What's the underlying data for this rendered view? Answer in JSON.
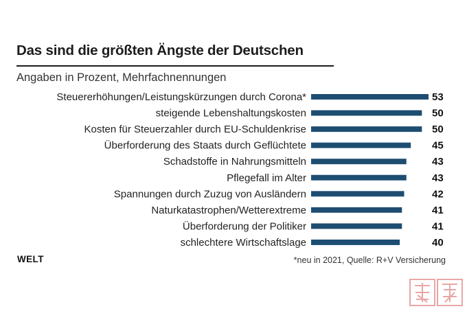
{
  "header": {
    "title": "Das sind die größten Ängste der Deutschen",
    "subtitle": "Angaben in Prozent, Mehrfachnennungen"
  },
  "footer": {
    "brand": "WELT",
    "source": "*neu in 2021, Quelle: R+V Versicherung"
  },
  "colors": {
    "bar": "#1e4d72",
    "text": "#1c1c1c",
    "watermark": "#e8a6a6"
  },
  "chart_data": {
    "type": "bar",
    "orientation": "horizontal",
    "title": "Das sind die größten Ängste der Deutschen",
    "subtitle": "Angaben in Prozent, Mehrfachnennungen",
    "xlabel": "",
    "ylabel": "",
    "xlim": [
      0,
      53
    ],
    "grid": false,
    "legend": "none",
    "categories": [
      "Steuererhöhungen/Leistungskürzungen durch Corona*",
      "steigende Lebenshaltungskosten",
      "Kosten für Steuerzahler durch EU-Schuldenkrise",
      "Überforderung des Staats durch Geflüchtete",
      "Schadstoffe in Nahrungsmitteln",
      "Pflegefall im Alter",
      "Spannungen durch Zuzug von Ausländern",
      "Naturkatastrophen/Wetterextreme",
      "Überforderung der Politiker",
      "schlechtere Wirtschaftslage"
    ],
    "values": [
      53,
      50,
      50,
      45,
      43,
      43,
      42,
      41,
      41,
      40
    ],
    "unit": "%"
  }
}
